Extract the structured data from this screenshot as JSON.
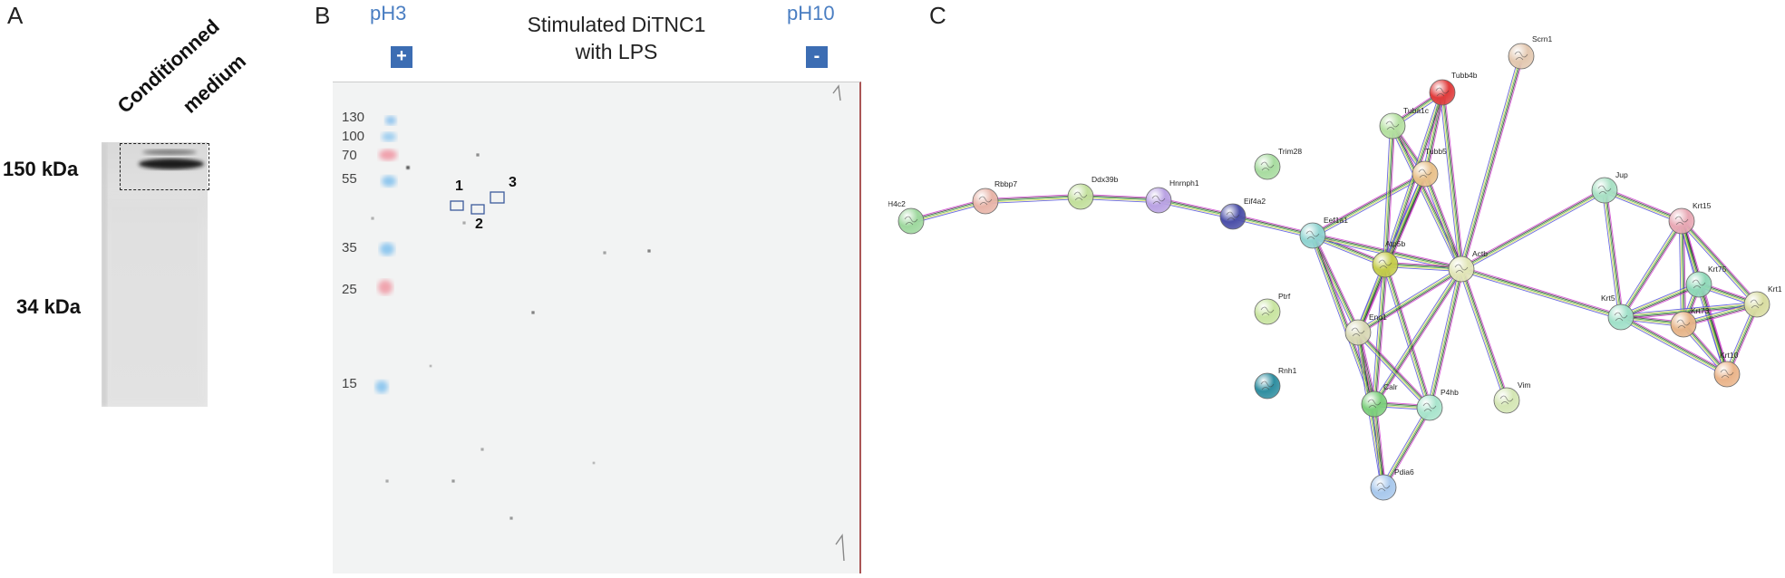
{
  "panel_a": {
    "letter": "A",
    "lane_label_line1": "Conditionned",
    "lane_label_line2": "medium",
    "marker_150": "150 kDa",
    "marker_34": "34 kDa"
  },
  "panel_b": {
    "letter": "B",
    "ph_left": "pH3",
    "ph_right": "pH10",
    "sign_plus": "+",
    "sign_minus": "-",
    "title_line1": "Stimulated DiTNC1",
    "title_line2": "with LPS",
    "mw_markers": [
      "130",
      "100",
      "70",
      "55",
      "35",
      "25",
      "15"
    ],
    "spot_labels": [
      "1",
      "2",
      "3"
    ]
  },
  "panel_c": {
    "letter": "C",
    "nodes": [
      {
        "id": "H4c2",
        "color": "#9ed89e"
      },
      {
        "id": "Rbbp7",
        "color": "#e8b4a8"
      },
      {
        "id": "Ddx39b",
        "color": "#c2df9c"
      },
      {
        "id": "Hnrnph1",
        "color": "#b9a2e3"
      },
      {
        "id": "Eif4a2",
        "color": "#4b4fa8"
      },
      {
        "id": "Trim28",
        "color": "#a8dca0"
      },
      {
        "id": "Eef1a1",
        "color": "#8fd3d0"
      },
      {
        "id": "Tuba1c",
        "color": "#b4e0a0"
      },
      {
        "id": "Tubb4b",
        "color": "#e03c3c"
      },
      {
        "id": "Tubb5",
        "color": "#e8c08a"
      },
      {
        "id": "Scrn1",
        "color": "#e3c8b0"
      },
      {
        "id": "Atp5b",
        "color": "#c4cc4a"
      },
      {
        "id": "Actb",
        "color": "#e2e6b8"
      },
      {
        "id": "Jup",
        "color": "#a8e0c4"
      },
      {
        "id": "Krt15",
        "color": "#e8a8b4"
      },
      {
        "id": "Krt75",
        "color": "#8fd8b8"
      },
      {
        "id": "Krt1",
        "color": "#d8dca0"
      },
      {
        "id": "Krt5",
        "color": "#a0e0c8"
      },
      {
        "id": "Krt73",
        "color": "#e6b488"
      },
      {
        "id": "Krt10",
        "color": "#eab48a"
      },
      {
        "id": "Ptrf",
        "color": "#c8e4a0"
      },
      {
        "id": "Rnh1",
        "color": "#2f8ea0"
      },
      {
        "id": "Eno1",
        "color": "#d8d8b4"
      },
      {
        "id": "Calr",
        "color": "#7ccf7c"
      },
      {
        "id": "P4hb",
        "color": "#a8e4cc"
      },
      {
        "id": "Vim",
        "color": "#d4e6b4"
      },
      {
        "id": "Pdia6",
        "color": "#a8c8ec"
      }
    ]
  }
}
